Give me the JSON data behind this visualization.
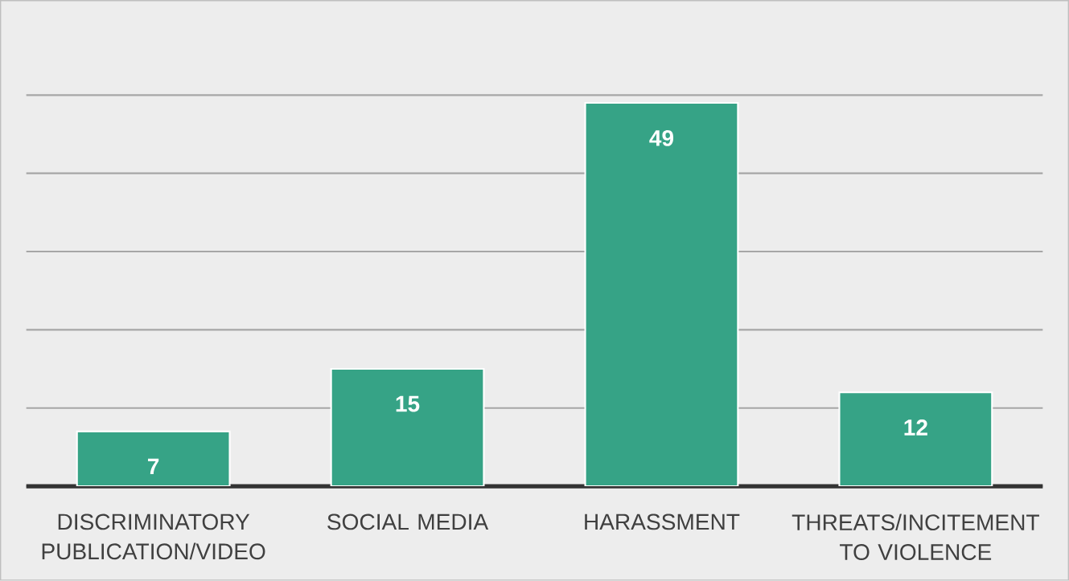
{
  "chart_data": {
    "type": "bar",
    "categories": [
      "DISCRIMINATORY PUBLICATION/VIDEO",
      "SOCIAL MEDIA",
      "HARASSMENT",
      "THREATS/INCITEMENT TO VIOLENCE"
    ],
    "values": [
      7,
      15,
      49,
      12
    ],
    "color": "#36a386",
    "grid": "y",
    "tick_labels": "x",
    "data_labels": true
  }
}
